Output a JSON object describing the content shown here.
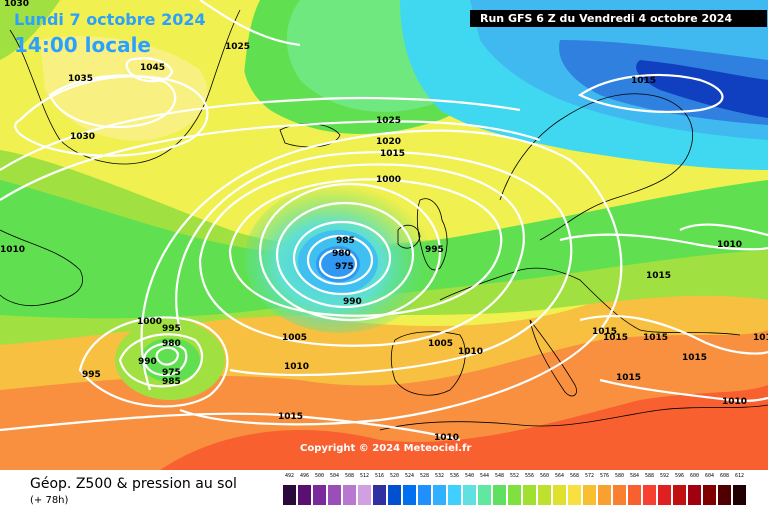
{
  "header": {
    "date_label": "Lundi 7 octobre 2024",
    "time_label": "14:00 locale",
    "run_label": "Run GFS 6 Z du Vendredi 4 octobre 2024"
  },
  "copyright": "Copyright © 2024 Meteociel.fr",
  "footer": {
    "title": "Géop. Z500 & pression au sol",
    "subtitle": "(+ 78h)"
  },
  "scale": {
    "labels": [
      "492",
      "496",
      "500",
      "504",
      "508",
      "512",
      "516",
      "520",
      "524",
      "528",
      "532",
      "536",
      "540",
      "544",
      "548",
      "552",
      "556",
      "560",
      "564",
      "568",
      "572",
      "576",
      "580",
      "584",
      "588",
      "592",
      "596",
      "600",
      "604",
      "608",
      "612"
    ],
    "colors": [
      "#2a0a3a",
      "#5a1070",
      "#7a2a9a",
      "#9a4fb8",
      "#b878d0",
      "#d0a0e0",
      "#3030a0",
      "#0050d0",
      "#0070f0",
      "#2090ff",
      "#30b0ff",
      "#40d0ff",
      "#60e0e0",
      "#60e8a0",
      "#60e060",
      "#80e040",
      "#a0e030",
      "#c0e030",
      "#e0e030",
      "#f8e040",
      "#f8c030",
      "#f8a030",
      "#f88030",
      "#f86030",
      "#f84030",
      "#e02020",
      "#c01010",
      "#a00010",
      "#800000",
      "#500000",
      "#200000"
    ]
  },
  "isobars": {
    "labels": [
      "1030",
      "1025",
      "1045",
      "1035",
      "1030",
      "1025",
      "1020",
      "1015",
      "1000",
      "1015",
      "985",
      "980",
      "975",
      "995",
      "990",
      "1010",
      "1015",
      "1010",
      "1000",
      "995",
      "980",
      "990",
      "975",
      "985",
      "995",
      "1005",
      "1010",
      "1005",
      "1010",
      "1015",
      "1015",
      "1015",
      "1015",
      "1015",
      "1015",
      "1010",
      "1015",
      "1010"
    ]
  },
  "map": {
    "colors": {
      "deep_blue": "#1040c0",
      "blue": "#3080e0",
      "light_blue": "#40b8f0",
      "cyan": "#40d8f0",
      "green_light": "#70e880",
      "green": "#60e050",
      "lime": "#a0e040",
      "yellow": "#f0f050",
      "orange_light": "#f8c040",
      "orange": "#f89040",
      "red_orange": "#f86030",
      "isobar": "#ffffff",
      "coast": "#000000"
    }
  }
}
